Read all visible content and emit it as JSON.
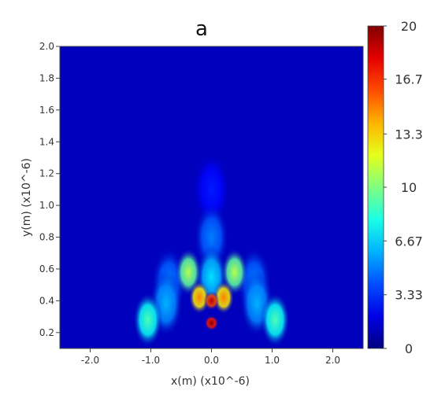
{
  "chart_data": {
    "type": "heatmap",
    "title": "a",
    "xlabel": "x(m) (x10^-6)",
    "ylabel": "y(m) (x10^-6)",
    "xlim": [
      -2.5,
      2.5
    ],
    "ylim": [
      0.1,
      2.0
    ],
    "x_ticks": [
      "-2.0",
      "-1.0",
      "0.0",
      "1.0",
      "2.0"
    ],
    "x_tick_values": [
      -2.0,
      -1.0,
      0.0,
      1.0,
      2.0
    ],
    "y_ticks": [
      "0.2",
      "0.4",
      "0.6",
      "0.8",
      "1.0",
      "1.2",
      "1.4",
      "1.6",
      "1.8",
      "2.0"
    ],
    "y_tick_values": [
      0.2,
      0.4,
      0.6,
      0.8,
      1.0,
      1.2,
      1.4,
      1.6,
      1.8,
      2.0
    ],
    "colorbar": {
      "min": 0,
      "max": 20,
      "ticks": [
        "20",
        "16.7",
        "13.3",
        "10",
        "6.67",
        "3.33",
        "0"
      ],
      "tick_values": [
        20,
        16.7,
        13.3,
        10,
        6.67,
        3.33,
        0
      ],
      "colormap": "jet"
    },
    "features": [
      {
        "x": 0.0,
        "y": 0.26,
        "value": 20
      },
      {
        "x": 0.0,
        "y": 0.4,
        "value": 19
      },
      {
        "x": -0.2,
        "y": 0.42,
        "value": 15
      },
      {
        "x": 0.2,
        "y": 0.42,
        "value": 15
      },
      {
        "x": -0.38,
        "y": 0.58,
        "value": 11
      },
      {
        "x": 0.38,
        "y": 0.58,
        "value": 11
      },
      {
        "x": 0.0,
        "y": 0.55,
        "value": 7
      },
      {
        "x": -1.05,
        "y": 0.28,
        "value": 9
      },
      {
        "x": 1.05,
        "y": 0.28,
        "value": 9
      },
      {
        "x": -0.75,
        "y": 0.38,
        "value": 6
      },
      {
        "x": 0.75,
        "y": 0.38,
        "value": 6
      },
      {
        "x": -0.7,
        "y": 0.52,
        "value": 5
      },
      {
        "x": 0.7,
        "y": 0.52,
        "value": 5
      },
      {
        "x": 0.0,
        "y": 0.8,
        "value": 5
      },
      {
        "x": 0.0,
        "y": 1.1,
        "value": 3
      }
    ],
    "background_value": 1.2,
    "grid": false,
    "legend": "right colorbar"
  }
}
